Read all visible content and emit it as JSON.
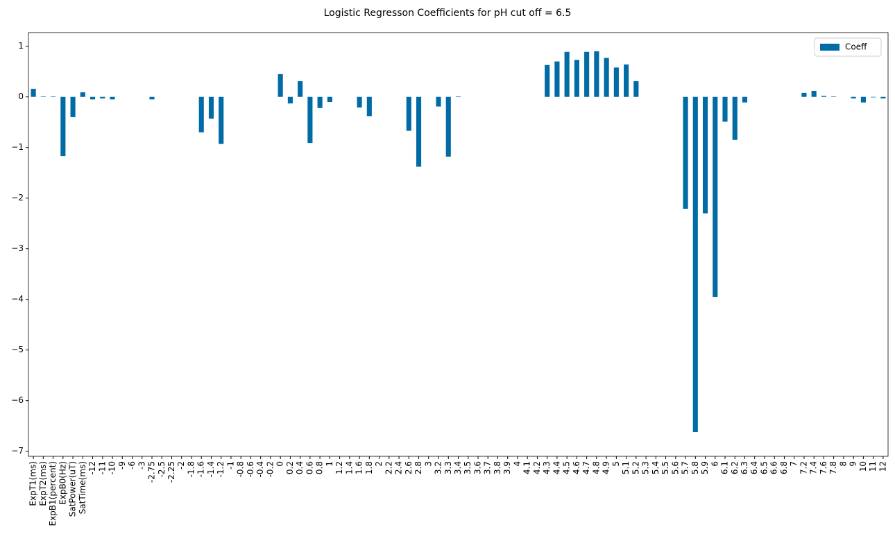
{
  "chart_data": {
    "type": "bar",
    "title": "Logistic Regresson Coefficients for pH cut off = 6.5",
    "categories": [
      "ExpT1(ms)",
      "ExpT2(ms)",
      "ExpB1(percent)",
      "ExpB0(Hz)",
      "SatPower(uT)",
      "SatTime(ms)",
      "-12",
      "-11",
      "-10",
      "-9",
      "-6",
      "-3",
      "-2.75",
      "-2.5",
      "-2.25",
      "-2",
      "-1.8",
      "-1.6",
      "-1.4",
      "-1.2",
      "-1",
      "-0.8",
      "-0.6",
      "-0.4",
      "-0.2",
      "0",
      "0.2",
      "0.4",
      "0.6",
      "0.8",
      "1",
      "1.2",
      "1.4",
      "1.6",
      "1.8",
      "2",
      "2.2",
      "2.4",
      "2.6",
      "2.8",
      "3",
      "3.2",
      "3.3",
      "3.4",
      "3.5",
      "3.6",
      "3.7",
      "3.8",
      "3.9",
      "4",
      "4.1",
      "4.2",
      "4.3",
      "4.4",
      "4.5",
      "4.6",
      "4.7",
      "4.8",
      "4.9",
      "5",
      "5.1",
      "5.2",
      "5.3",
      "5.4",
      "5.5",
      "5.6",
      "5.7",
      "5.8",
      "5.9",
      "6",
      "6.1",
      "6.2",
      "6.3",
      "6.4",
      "6.5",
      "6.6",
      "6.8",
      "7",
      "7.2",
      "7.4",
      "7.6",
      "7.8",
      "8",
      "9",
      "10",
      "11",
      "12"
    ],
    "series": [
      {
        "name": "Coeff",
        "color": "#006ba4",
        "values": [
          0.16,
          0.01,
          0.01,
          -1.17,
          -0.4,
          0.09,
          -0.05,
          -0.03,
          -0.05,
          0,
          0,
          0,
          -0.05,
          0,
          0,
          0,
          0,
          -0.7,
          -0.43,
          -0.93,
          0,
          0,
          0,
          0,
          0,
          0.45,
          -0.13,
          0.31,
          -0.91,
          -0.22,
          -0.1,
          0,
          0,
          -0.21,
          -0.38,
          0,
          0,
          0,
          -0.67,
          -1.38,
          0,
          -0.19,
          -1.18,
          0.01,
          0,
          0,
          0,
          0,
          0,
          0,
          0,
          0,
          0.63,
          0.7,
          0.89,
          0.73,
          0.89,
          0.9,
          0.77,
          0.58,
          0.64,
          0.31,
          0,
          0,
          0,
          0,
          -2.21,
          -6.62,
          -2.3,
          -3.95,
          -0.49,
          -0.85,
          -0.11,
          0,
          0,
          0,
          0,
          0,
          0.08,
          0.12,
          0.02,
          0.01,
          0,
          -0.03,
          -0.11,
          -0.01,
          -0.03
        ]
      }
    ],
    "ylim": [
      -7.1,
      1.27
    ],
    "yticks": [
      {
        "value": -7,
        "label": "−7"
      },
      {
        "value": -6,
        "label": "−6"
      },
      {
        "value": -5,
        "label": "−5"
      },
      {
        "value": -4,
        "label": "−4"
      },
      {
        "value": -3,
        "label": "−3"
      },
      {
        "value": -2,
        "label": "−2"
      },
      {
        "value": -1,
        "label": "−1"
      },
      0,
      1
    ],
    "legend": "upper right"
  }
}
